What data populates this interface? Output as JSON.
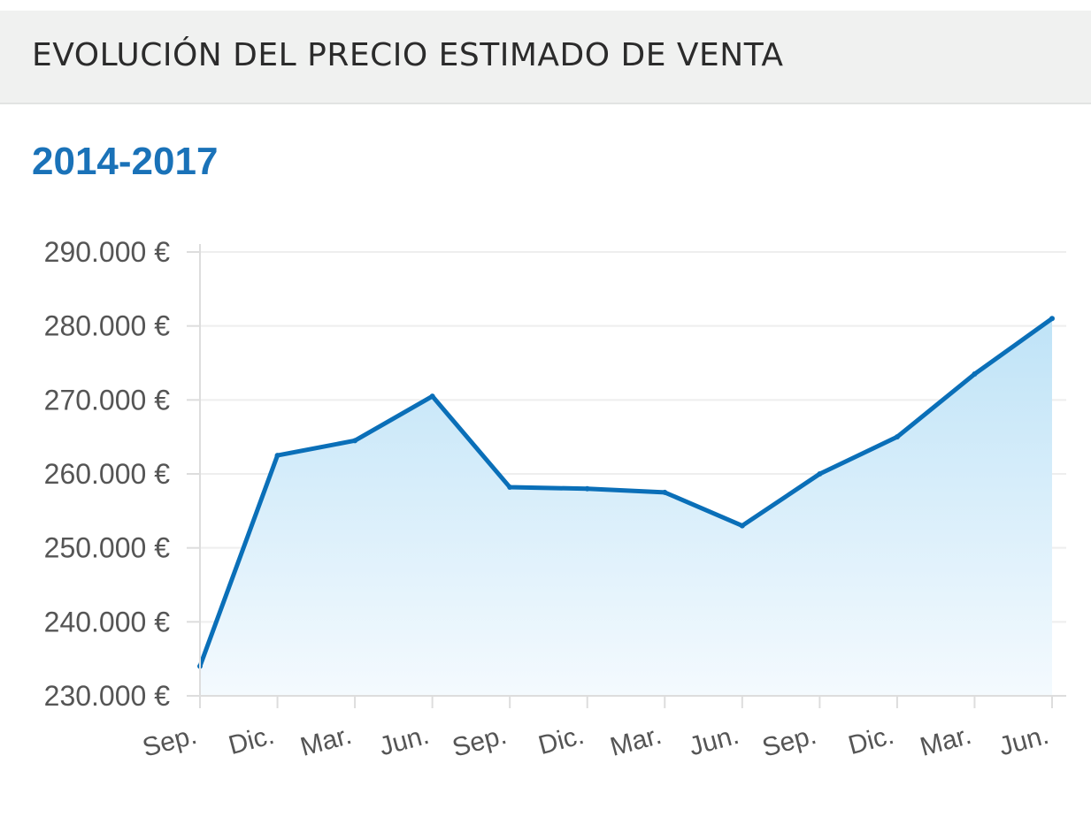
{
  "header": {
    "title": "EVOLUCIÓN DEL PRECIO ESTIMADO DE VENTA"
  },
  "subtitle": "2014-2017",
  "colors": {
    "line": "#0a6fb8",
    "fill_top": "#bfe3f7",
    "fill_bottom": "#f4fafe",
    "subtitle": "#1a72b8",
    "grid": "#eeeeee",
    "axis": "#dddddd"
  },
  "chart_data": {
    "type": "area",
    "title": "",
    "xlabel": "",
    "ylabel": "",
    "categories": [
      "Sep.",
      "Dic.",
      "Mar.",
      "Jun.",
      "Sep.",
      "Dic.",
      "Mar.",
      "Jun.",
      "Sep.",
      "Dic.",
      "Mar.",
      "Jun."
    ],
    "series": [
      {
        "values": [
          234000,
          262500,
          264500,
          270500,
          258200,
          258000,
          257500,
          253000,
          260000,
          265000,
          273500,
          281000
        ]
      }
    ],
    "ylim": [
      230000,
      290000
    ],
    "yticks": [
      290000,
      280000,
      270000,
      260000,
      250000,
      240000,
      230000
    ],
    "ytick_labels": [
      "290.000 €",
      "280.000 €",
      "270.000 €",
      "260.000 €",
      "250.000 €",
      "240.000 €",
      "230.000 €"
    ],
    "grid": true,
    "legend": "none"
  }
}
